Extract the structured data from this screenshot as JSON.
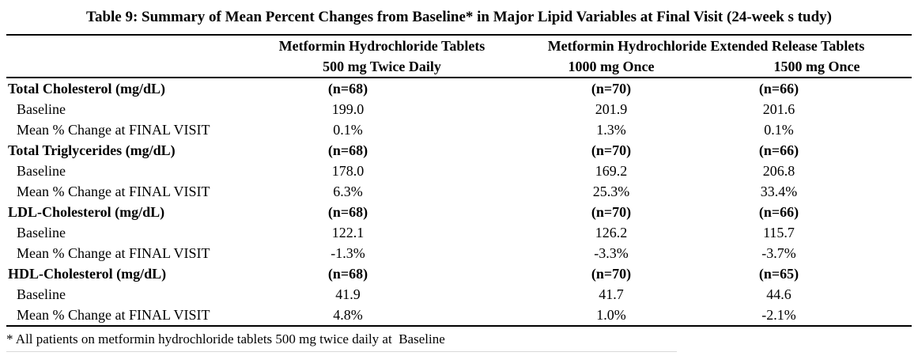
{
  "document": {
    "title": "Table 9: Summary of Mean Percent Changes from Baseline* in Major Lipid Variables at Final Visit (24-week s tudy)",
    "footnote": "* All patients on metformin hydrochloride tablets 500 mg twice daily at  Baseline"
  },
  "table": {
    "column_group_headers": [
      "Metformin Hydrochloride Tablets",
      "Metformin Hydrochloride Extended Release Tablets"
    ],
    "dose_headers": [
      "500 mg Twice Daily",
      "1000 mg Once",
      "1500 mg Once"
    ],
    "row_labels": {
      "baseline": "Baseline",
      "mean_change": "Mean % Change at FINAL VISIT"
    },
    "sections": [
      {
        "name": "Total Cholesterol (mg/dL)",
        "n": [
          "(n=68)",
          "(n=70)",
          "(n=66)"
        ],
        "baseline": [
          "199.0",
          "201.9",
          "201.6"
        ],
        "mean_change": [
          "0.1%",
          "1.3%",
          "0.1%"
        ]
      },
      {
        "name": "Total Triglycerides (mg/dL)",
        "n": [
          "(n=68)",
          "(n=70)",
          "(n=66)"
        ],
        "baseline": [
          "178.0",
          "169.2",
          "206.8"
        ],
        "mean_change": [
          "6.3%",
          "25.3%",
          "33.4%"
        ]
      },
      {
        "name": "LDL-Cholesterol (mg/dL)",
        "n": [
          "(n=68)",
          "(n=70)",
          "(n=66)"
        ],
        "baseline": [
          "122.1",
          "126.2",
          "115.7"
        ],
        "mean_change": [
          "-1.3%",
          "-3.3%",
          "-3.7%"
        ]
      },
      {
        "name": "HDL-Cholesterol (mg/dL)",
        "n": [
          "(n=68)",
          "(n=70)",
          "(n=65)"
        ],
        "baseline": [
          "41.9",
          "41.7",
          "44.6"
        ],
        "mean_change": [
          "4.8%",
          "1.0%",
          "-2.1%"
        ]
      }
    ]
  }
}
